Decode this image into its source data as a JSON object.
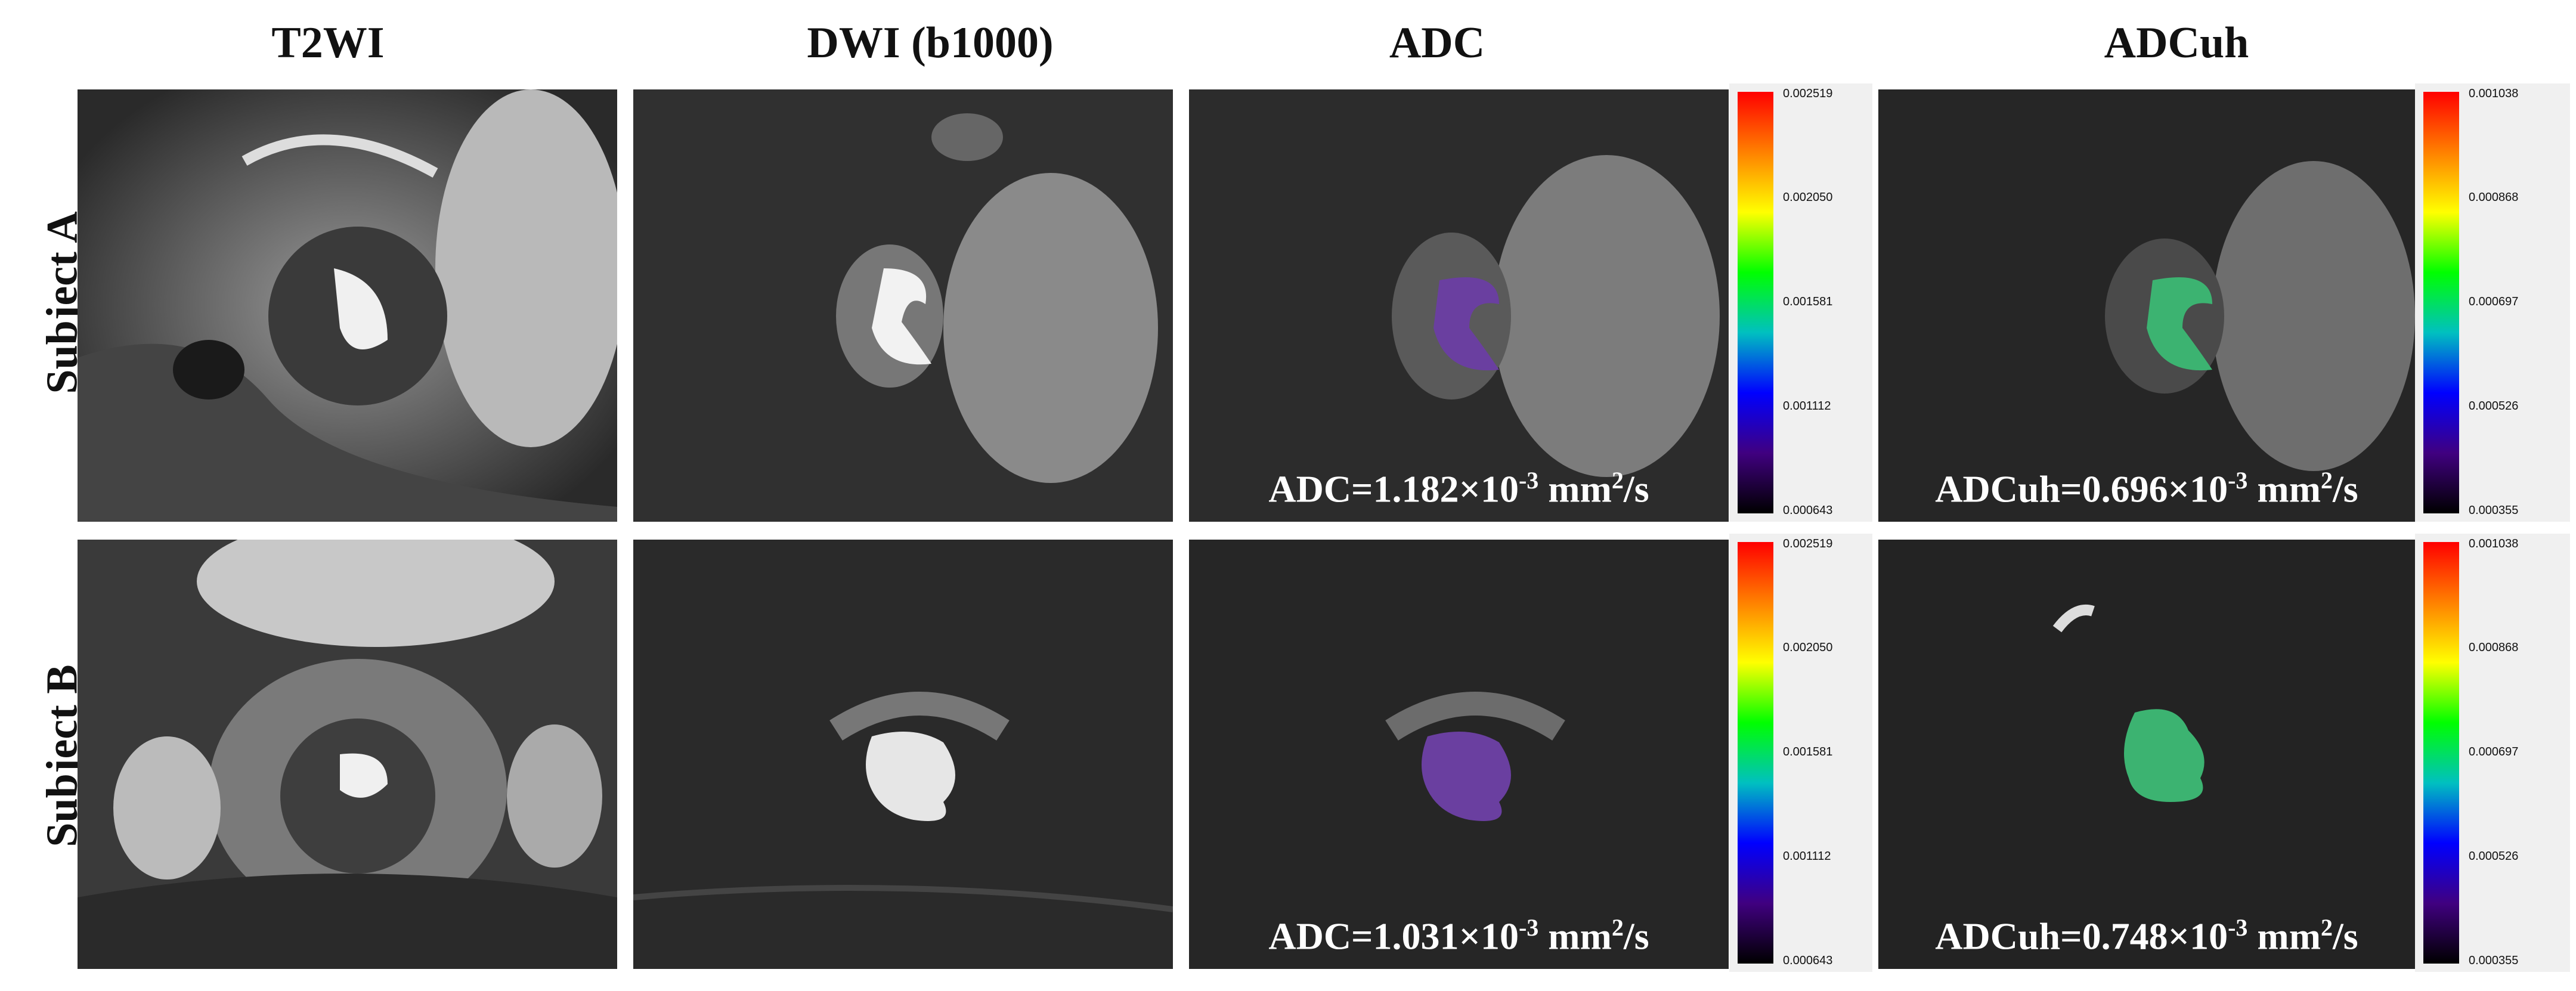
{
  "columns": [
    "T2WI",
    "DWI (b1000)",
    "ADC",
    "ADCuh"
  ],
  "rows": [
    "Subject A",
    "Subject B"
  ],
  "measurements": {
    "a_adc": {
      "prefix": "ADC=1.182×10",
      "exp": "-3",
      "unit": " mm",
      "unit_exp": "2",
      "suffix": "/s"
    },
    "a_adcuh": {
      "prefix": "ADCuh=0.696×10",
      "exp": "-3",
      "unit": " mm",
      "unit_exp": "2",
      "suffix": "/s"
    },
    "b_adc": {
      "prefix": "ADC=1.031×10",
      "exp": "-3",
      "unit": " mm",
      "unit_exp": "2",
      "suffix": "/s"
    },
    "b_adcuh": {
      "prefix": "ADCuh=0.748×10",
      "exp": "-3",
      "unit": " mm",
      "unit_exp": "2",
      "suffix": "/s"
    }
  },
  "colorbars": {
    "adc": [
      "0.002519",
      "0.002050",
      "0.001581",
      "0.001112",
      "0.000643"
    ],
    "adcuh": [
      "0.001038",
      "0.000868",
      "0.000697",
      "0.000526",
      "0.000355"
    ]
  },
  "colors": {
    "gradient": [
      "#ff0000",
      "#ff8000",
      "#ffff00",
      "#00ff00",
      "#00c0c0",
      "#0000ff",
      "#400080",
      "#000000"
    ],
    "roi_adc": "#6a3fa0",
    "roi_adcuh": "#3cb371"
  }
}
